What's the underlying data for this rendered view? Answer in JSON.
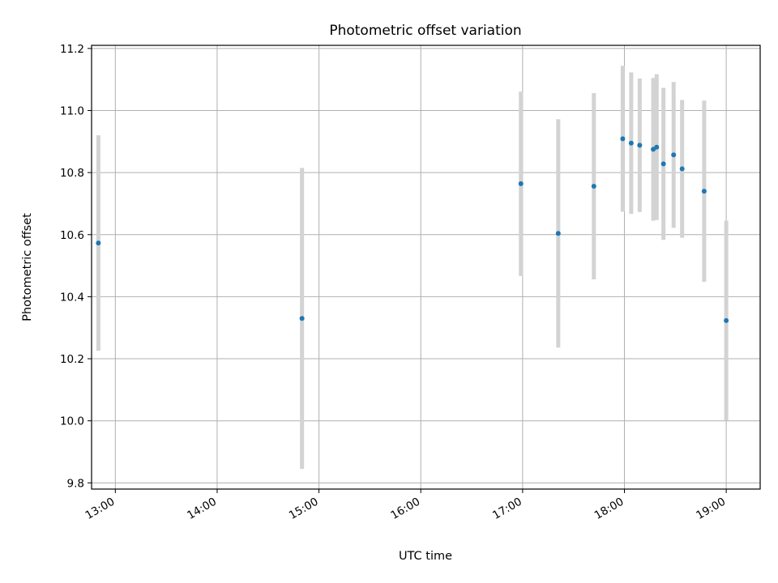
{
  "chart_data": {
    "type": "scatter",
    "title": "Photometric offset variation",
    "xlabel": "UTC time",
    "ylabel": "Photometric offset",
    "grid": true,
    "xlim": [
      "12:46",
      "19:20"
    ],
    "ylim": [
      9.78,
      11.21
    ],
    "x_ticks": [
      "13:00",
      "14:00",
      "15:00",
      "16:00",
      "17:00",
      "18:00",
      "19:00"
    ],
    "y_ticks": [
      9.8,
      10.0,
      10.2,
      10.4,
      10.6,
      10.8,
      11.0,
      11.2
    ],
    "y_tick_labels": [
      "9.8",
      "10.0",
      "10.2",
      "10.4",
      "10.6",
      "10.8",
      "11.0",
      "11.2"
    ],
    "colors": {
      "points": "#1f77b4",
      "error_bars": "#d3d3d3",
      "grid": "#b0b0b0"
    },
    "points": [
      {
        "x": "12:50",
        "y": 10.573,
        "err": 0.347
      },
      {
        "x": "14:50",
        "y": 10.33,
        "err": 0.485
      },
      {
        "x": "16:59",
        "y": 10.764,
        "err": 0.297
      },
      {
        "x": "17:21",
        "y": 10.604,
        "err": 0.368
      },
      {
        "x": "17:42",
        "y": 10.756,
        "err": 0.3
      },
      {
        "x": "17:59",
        "y": 10.909,
        "err": 0.235
      },
      {
        "x": "18:04",
        "y": 10.895,
        "err": 0.228
      },
      {
        "x": "18:09",
        "y": 10.888,
        "err": 0.215
      },
      {
        "x": "18:17",
        "y": 10.875,
        "err": 0.23
      },
      {
        "x": "18:19",
        "y": 10.882,
        "err": 0.235
      },
      {
        "x": "18:23",
        "y": 10.828,
        "err": 0.245
      },
      {
        "x": "18:29",
        "y": 10.857,
        "err": 0.235
      },
      {
        "x": "18:34",
        "y": 10.812,
        "err": 0.222
      },
      {
        "x": "18:47",
        "y": 10.74,
        "err": 0.292
      },
      {
        "x": "19:00",
        "y": 10.323,
        "err": 0.322
      }
    ]
  }
}
